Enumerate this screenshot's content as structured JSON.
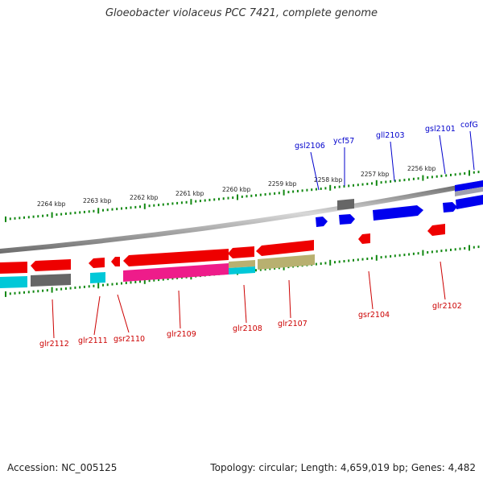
{
  "title": "Gloeobacter violaceus PCC 7421, complete genome",
  "accession_label": "Accession: NC_005125",
  "info_label": "Topology: circular; Length: 4,659,019 bp; Genes: 4,482",
  "colors": {
    "forward_gene": "#0000ee",
    "reverse_gene": "#ee0000",
    "label_forward": "#0000cc",
    "label_reverse": "#cc0000",
    "tick": "#118811",
    "backbone": "#888888",
    "cog_grey": "#666666",
    "cog_cyan": "#00c8d8",
    "cog_magenta": "#ee1c8a",
    "cog_olive": "#b8b070"
  },
  "kbp_labels": [
    "2264 kbp",
    "2263 kbp",
    "2262 kbp",
    "2261 kbp",
    "2260 kbp",
    "2259 kbp",
    "2258 kbp",
    "2257 kbp",
    "2256 kbp"
  ],
  "genes_top": [
    "gsl2106",
    "ycf57",
    "gll2103",
    "gsl2101",
    "cofG"
  ],
  "genes_bottom": [
    "glr2112",
    "glr2111",
    "gsr2110",
    "glr2109",
    "glr2108",
    "glr2107",
    "gsr2104",
    "glr2102"
  ]
}
